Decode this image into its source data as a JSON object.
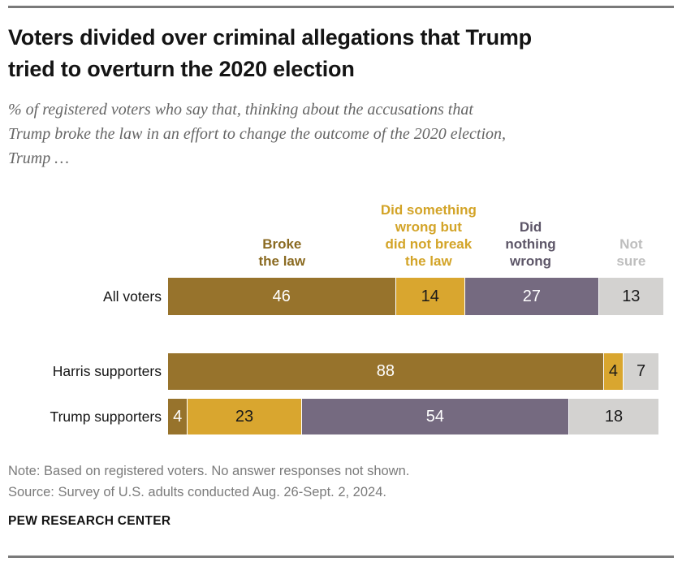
{
  "page": {
    "title_lines": [
      "Voters divided over criminal allegations that Trump",
      "tried to overturn the 2020 election"
    ],
    "subtitle_lines": [
      "% of registered voters who say that, thinking about the accusations that",
      "Trump broke the law in an effort to change the outcome of the 2020 election,",
      "Trump …"
    ],
    "note": "Note: Based on registered voters. No answer responses not shown.",
    "source": "Source: Survey of U.S. adults conducted Aug. 26-Sept. 2, 2024.",
    "footer": "PEW RESEARCH CENTER"
  },
  "chart_data": {
    "type": "bar",
    "orientation": "horizontal",
    "stacked": true,
    "unit": "percent of registered voters",
    "xlim": [
      0,
      100
    ],
    "grid": false,
    "legend_position": "column headers above bars",
    "categories": [
      "All voters",
      "Harris supporters",
      "Trump supporters"
    ],
    "series_keys": [
      "broke_law",
      "wrong_not_break",
      "nothing_wrong",
      "not_sure"
    ],
    "headers": [
      {
        "key": "broke_law",
        "label": "Broke\nthe law",
        "color": "#8a6a21",
        "center_pct": 23
      },
      {
        "key": "wrong_not_break",
        "label": "Did something\nwrong but\ndid not break\nthe law",
        "color": "#d3a428",
        "center_pct": 52.6
      },
      {
        "key": "nothing_wrong",
        "label": "Did\nnothing\nwrong",
        "color": "#5d5668",
        "center_pct": 73.2
      },
      {
        "key": "not_sure",
        "label": "Not\nsure",
        "color": "#bebebe",
        "center_pct": 93.5
      }
    ],
    "colors": {
      "broke_law": {
        "bg": "#97732c",
        "text": "#ffffff"
      },
      "wrong_not_break": {
        "bg": "#d9a62f",
        "text": "#1a1a1a"
      },
      "nothing_wrong": {
        "bg": "#756a80",
        "text": "#ffffff"
      },
      "not_sure": {
        "bg": "#d3d2d0",
        "text": "#1a1a1a"
      }
    },
    "rows": [
      {
        "label": "All voters",
        "values": {
          "broke_law": 46,
          "wrong_not_break": 14,
          "nothing_wrong": 27,
          "not_sure": 13
        }
      },
      {
        "label": "Harris supporters",
        "values": {
          "broke_law": 88,
          "wrong_not_break": 4,
          "nothing_wrong": null,
          "not_sure": 7
        }
      },
      {
        "label": "Trump supporters",
        "values": {
          "broke_law": 4,
          "wrong_not_break": 23,
          "nothing_wrong": 54,
          "not_sure": 18
        }
      }
    ]
  }
}
